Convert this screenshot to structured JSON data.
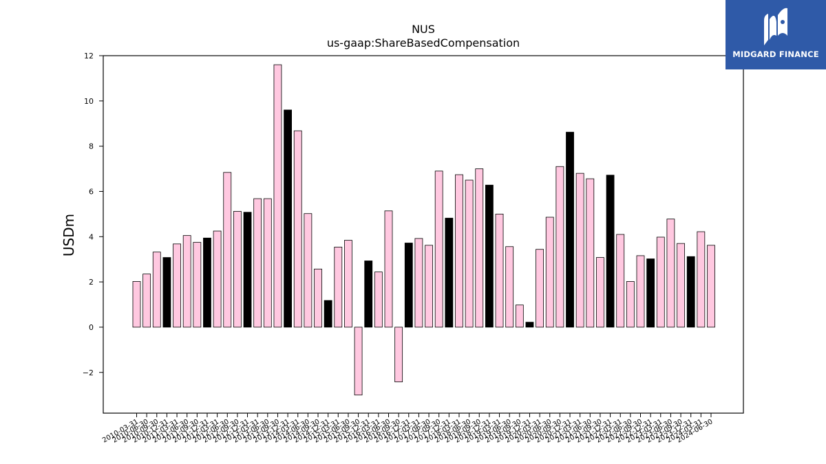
{
  "brand": {
    "name": "MIDGARD FINANCE",
    "logo_color": "#2f5aa8"
  },
  "chart_data": {
    "type": "bar",
    "title": "NUS",
    "subtitle": "us-gaap:ShareBasedCompensation",
    "ylabel": "USDm",
    "xlabel": "",
    "ylim": [
      -3.8,
      12
    ],
    "yticks": [
      -2,
      0,
      2,
      4,
      6,
      8,
      10,
      12
    ],
    "grid": false,
    "colors": {
      "pink": "#ffc8e0",
      "black": "#000000"
    },
    "categories": [
      "2010-03-31",
      "2010-06-30",
      "2010-09-30",
      "2010-12-31",
      "2011-03-31",
      "2011-06-30",
      "2011-09-30",
      "2011-12-31",
      "2012-03-31",
      "2012-06-30",
      "2012-09-30",
      "2012-12-31",
      "2013-03-31",
      "2013-06-30",
      "2013-09-30",
      "2013-12-31",
      "2014-03-31",
      "2014-06-30",
      "2014-09-30",
      "2014-12-31",
      "2015-03-31",
      "2015-06-30",
      "2015-09-30",
      "2015-12-31",
      "2016-03-31",
      "2016-06-30",
      "2016-09-30",
      "2016-12-31",
      "2017-03-31",
      "2017-06-30",
      "2017-09-30",
      "2017-12-31",
      "2018-03-31",
      "2018-06-30",
      "2018-09-30",
      "2018-12-31",
      "2019-03-31",
      "2019-06-30",
      "2019-09-30",
      "2019-12-31",
      "2020-03-31",
      "2020-06-30",
      "2020-09-30",
      "2020-12-31",
      "2021-03-31",
      "2021-06-30",
      "2021-09-30",
      "2021-12-31",
      "2022-03-31",
      "2022-06-30",
      "2022-09-30",
      "2022-12-31",
      "2023-03-31",
      "2023-06-30",
      "2023-09-30",
      "2023-12-31",
      "2024-03-31",
      "2024-06-30"
    ],
    "values": [
      2.02,
      2.35,
      3.32,
      3.08,
      3.68,
      4.05,
      3.75,
      3.94,
      4.25,
      6.84,
      5.12,
      5.08,
      5.68,
      5.68,
      11.6,
      9.6,
      8.68,
      5.02,
      2.57,
      1.18,
      3.54,
      3.84,
      -3.0,
      2.93,
      2.44,
      5.14,
      -2.42,
      3.72,
      3.92,
      3.62,
      6.9,
      4.82,
      6.74,
      6.5,
      7.0,
      6.28,
      5.0,
      3.56,
      0.98,
      0.22,
      3.44,
      4.86,
      7.1,
      8.62,
      6.8,
      6.56,
      3.08,
      6.72,
      4.1,
      2.02,
      3.16,
      3.02,
      3.98,
      4.78,
      3.7,
      3.12,
      4.22,
      3.62
    ],
    "bar_colors": [
      "pink",
      "pink",
      "pink",
      "black",
      "pink",
      "pink",
      "pink",
      "black",
      "pink",
      "pink",
      "pink",
      "black",
      "pink",
      "pink",
      "pink",
      "black",
      "pink",
      "pink",
      "pink",
      "black",
      "pink",
      "pink",
      "pink",
      "black",
      "pink",
      "pink",
      "pink",
      "black",
      "pink",
      "pink",
      "pink",
      "black",
      "pink",
      "pink",
      "pink",
      "black",
      "pink",
      "pink",
      "pink",
      "black",
      "pink",
      "pink",
      "pink",
      "black",
      "pink",
      "pink",
      "pink",
      "black",
      "pink",
      "pink",
      "pink",
      "black",
      "pink",
      "pink",
      "pink",
      "black",
      "pink",
      "pink"
    ]
  }
}
